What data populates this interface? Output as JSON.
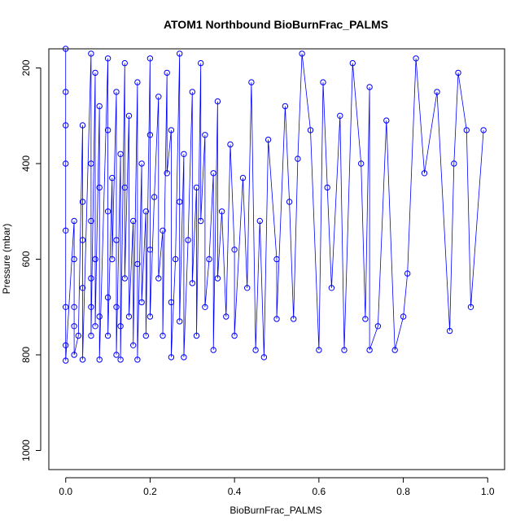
{
  "chart_data": {
    "type": "scatter",
    "title": "ATOM1 Northbound BioBurnFrac_PALMS",
    "xlabel": "BioBurnFrac_PALMS",
    "ylabel": "Pressure (mbar)",
    "xlim": [
      -0.04,
      1.04
    ],
    "ylim": [
      1040,
      160
    ],
    "y_reversed": true,
    "x_ticks": [
      0.0,
      0.2,
      0.4,
      0.6,
      0.8,
      1.0
    ],
    "x_tick_labels": [
      "0.0",
      "0.2",
      "0.4",
      "0.6",
      "0.8",
      "1.0"
    ],
    "y_ticks": [
      200,
      400,
      600,
      800,
      1000
    ],
    "y_tick_labels": [
      "200",
      "400",
      "600",
      "800",
      "1000"
    ],
    "grid": false,
    "legend": "none",
    "series": [
      {
        "color": "#0000ff",
        "marker": "open-circle",
        "connect": true,
        "points": [
          [
            0.0,
            160
          ],
          [
            0.0,
            250
          ],
          [
            0.0,
            320
          ],
          [
            0.0,
            400
          ],
          [
            0.0,
            540
          ],
          [
            0.0,
            700
          ],
          [
            0.0,
            780
          ],
          [
            0.0,
            812
          ],
          [
            0.02,
            520
          ],
          [
            0.02,
            600
          ],
          [
            0.02,
            700
          ],
          [
            0.02,
            740
          ],
          [
            0.02,
            800
          ],
          [
            0.03,
            760
          ],
          [
            0.04,
            320
          ],
          [
            0.04,
            480
          ],
          [
            0.04,
            560
          ],
          [
            0.04,
            660
          ],
          [
            0.04,
            810
          ],
          [
            0.06,
            170
          ],
          [
            0.06,
            400
          ],
          [
            0.06,
            520
          ],
          [
            0.06,
            640
          ],
          [
            0.06,
            700
          ],
          [
            0.06,
            760
          ],
          [
            0.07,
            210
          ],
          [
            0.07,
            600
          ],
          [
            0.07,
            740
          ],
          [
            0.08,
            280
          ],
          [
            0.08,
            450
          ],
          [
            0.08,
            720
          ],
          [
            0.08,
            810
          ],
          [
            0.1,
            180
          ],
          [
            0.1,
            330
          ],
          [
            0.1,
            500
          ],
          [
            0.1,
            680
          ],
          [
            0.1,
            760
          ],
          [
            0.11,
            430
          ],
          [
            0.11,
            600
          ],
          [
            0.12,
            250
          ],
          [
            0.12,
            560
          ],
          [
            0.12,
            700
          ],
          [
            0.12,
            800
          ],
          [
            0.13,
            380
          ],
          [
            0.13,
            740
          ],
          [
            0.13,
            810
          ],
          [
            0.14,
            190
          ],
          [
            0.14,
            450
          ],
          [
            0.14,
            640
          ],
          [
            0.15,
            300
          ],
          [
            0.15,
            720
          ],
          [
            0.16,
            520
          ],
          [
            0.16,
            780
          ],
          [
            0.17,
            230
          ],
          [
            0.17,
            610
          ],
          [
            0.17,
            810
          ],
          [
            0.18,
            400
          ],
          [
            0.18,
            690
          ],
          [
            0.19,
            500
          ],
          [
            0.19,
            760
          ],
          [
            0.2,
            180
          ],
          [
            0.2,
            340
          ],
          [
            0.2,
            580
          ],
          [
            0.2,
            720
          ],
          [
            0.21,
            470
          ],
          [
            0.22,
            260
          ],
          [
            0.22,
            640
          ],
          [
            0.23,
            540
          ],
          [
            0.23,
            760
          ],
          [
            0.24,
            210
          ],
          [
            0.24,
            420
          ],
          [
            0.25,
            330
          ],
          [
            0.25,
            690
          ],
          [
            0.25,
            805
          ],
          [
            0.26,
            600
          ],
          [
            0.27,
            170
          ],
          [
            0.27,
            480
          ],
          [
            0.27,
            730
          ],
          [
            0.28,
            380
          ],
          [
            0.28,
            805
          ],
          [
            0.29,
            560
          ],
          [
            0.3,
            250
          ],
          [
            0.3,
            650
          ],
          [
            0.31,
            450
          ],
          [
            0.31,
            760
          ],
          [
            0.32,
            190
          ],
          [
            0.32,
            520
          ],
          [
            0.33,
            340
          ],
          [
            0.33,
            700
          ],
          [
            0.34,
            600
          ],
          [
            0.35,
            420
          ],
          [
            0.35,
            790
          ],
          [
            0.36,
            270
          ],
          [
            0.36,
            640
          ],
          [
            0.37,
            500
          ],
          [
            0.38,
            720
          ],
          [
            0.39,
            360
          ],
          [
            0.4,
            580
          ],
          [
            0.4,
            760
          ],
          [
            0.42,
            430
          ],
          [
            0.43,
            660
          ],
          [
            0.44,
            230
          ],
          [
            0.45,
            790
          ],
          [
            0.46,
            520
          ],
          [
            0.47,
            805
          ],
          [
            0.48,
            350
          ],
          [
            0.5,
            600
          ],
          [
            0.5,
            725
          ],
          [
            0.52,
            280
          ],
          [
            0.53,
            480
          ],
          [
            0.54,
            725
          ],
          [
            0.55,
            390
          ],
          [
            0.56,
            170
          ],
          [
            0.58,
            330
          ],
          [
            0.6,
            790
          ],
          [
            0.61,
            230
          ],
          [
            0.62,
            450
          ],
          [
            0.63,
            660
          ],
          [
            0.65,
            300
          ],
          [
            0.66,
            790
          ],
          [
            0.68,
            190
          ],
          [
            0.7,
            400
          ],
          [
            0.71,
            725
          ],
          [
            0.72,
            240
          ],
          [
            0.72,
            790
          ],
          [
            0.74,
            740
          ],
          [
            0.76,
            310
          ],
          [
            0.78,
            790
          ],
          [
            0.8,
            720
          ],
          [
            0.81,
            630
          ],
          [
            0.83,
            180
          ],
          [
            0.85,
            420
          ],
          [
            0.88,
            250
          ],
          [
            0.91,
            750
          ],
          [
            0.92,
            400
          ],
          [
            0.93,
            210
          ],
          [
            0.95,
            330
          ],
          [
            0.96,
            700
          ],
          [
            0.99,
            330
          ]
        ]
      }
    ]
  }
}
